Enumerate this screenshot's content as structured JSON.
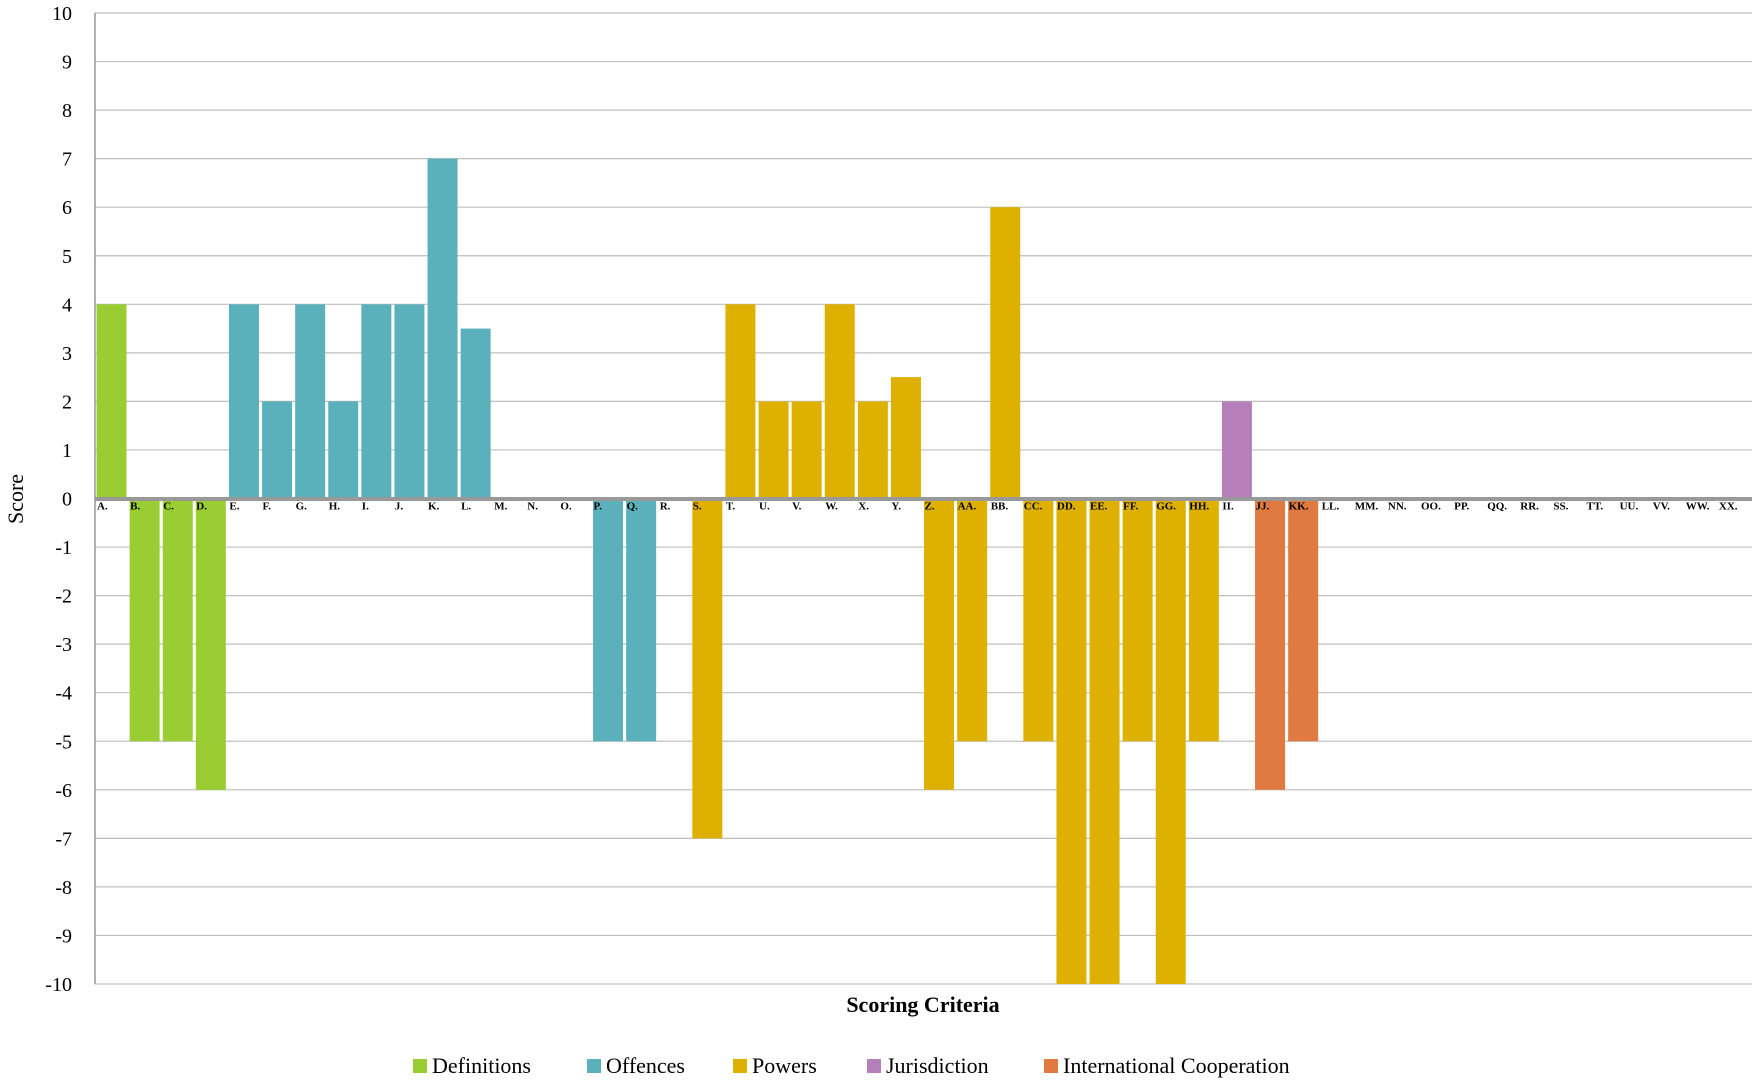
{
  "chart_data": {
    "type": "bar",
    "xlabel": "Scoring Criteria",
    "ylabel": "Score",
    "ylim": [
      -10,
      10
    ],
    "yticks": [
      10,
      9,
      8,
      7,
      6,
      5,
      4,
      3,
      2,
      1,
      0,
      -1,
      -2,
      -3,
      -4,
      -5,
      -6,
      -7,
      -8,
      -9,
      -10
    ],
    "grid": true,
    "legend_position": "bottom",
    "categories": [
      "A.",
      "B.",
      "C.",
      "D.",
      "E.",
      "F.",
      "G.",
      "H.",
      "I.",
      "J.",
      "K.",
      "L.",
      "M.",
      "N.",
      "O.",
      "P.",
      "Q.",
      "R.",
      "S.",
      "T.",
      "U.",
      "V.",
      "W.",
      "X.",
      "Y.",
      "Z.",
      "AA.",
      "BB.",
      "CC.",
      "DD.",
      "EE.",
      "FF.",
      "GG.",
      "HH.",
      "II.",
      "JJ.",
      "KK.",
      "LL.",
      "MM.",
      "NN.",
      "OO.",
      "PP.",
      "QQ.",
      "RR.",
      "SS.",
      "TT.",
      "UU.",
      "VV.",
      "WW.",
      "XX."
    ],
    "series": [
      {
        "name": "Definitions",
        "color": "#9acd32",
        "values": [
          4,
          -5,
          -5,
          -6,
          null,
          null,
          null,
          null,
          null,
          null,
          null,
          null,
          null,
          null,
          null,
          null,
          null,
          null,
          null,
          null,
          null,
          null,
          null,
          null,
          null,
          null,
          null,
          null,
          null,
          null,
          null,
          null,
          null,
          null,
          null,
          null,
          null,
          null,
          null,
          null,
          null,
          null,
          null,
          null,
          null,
          null,
          null,
          null,
          null,
          null
        ]
      },
      {
        "name": "Offences",
        "color": "#5ab1bb",
        "values": [
          null,
          null,
          null,
          null,
          4,
          2,
          4,
          2,
          4,
          4,
          7,
          3.5,
          0,
          0,
          0,
          -5,
          -5,
          null,
          null,
          null,
          null,
          null,
          null,
          null,
          null,
          null,
          null,
          null,
          null,
          null,
          null,
          null,
          null,
          null,
          null,
          null,
          null,
          null,
          null,
          null,
          null,
          null,
          null,
          null,
          null,
          null,
          null,
          null,
          null,
          null
        ]
      },
      {
        "name": "Powers",
        "color": "#deb100",
        "values": [
          null,
          null,
          null,
          null,
          null,
          null,
          null,
          null,
          null,
          null,
          null,
          null,
          null,
          null,
          null,
          null,
          null,
          0,
          -7,
          4,
          2,
          2,
          4,
          2,
          2.5,
          -6,
          -5,
          6,
          -5,
          -10,
          -10,
          -5,
          -10,
          -5,
          null,
          null,
          null,
          null,
          null,
          null,
          null,
          null,
          null,
          null,
          null,
          null,
          null,
          null,
          null,
          null
        ]
      },
      {
        "name": "Jurisdiction",
        "color": "#b67fb9",
        "values": [
          null,
          null,
          null,
          null,
          null,
          null,
          null,
          null,
          null,
          null,
          null,
          null,
          null,
          null,
          null,
          null,
          null,
          null,
          null,
          null,
          null,
          null,
          null,
          null,
          null,
          null,
          null,
          null,
          null,
          null,
          null,
          null,
          null,
          null,
          2,
          null,
          null,
          null,
          null,
          null,
          null,
          null,
          null,
          null,
          null,
          null,
          null,
          null,
          null,
          null
        ]
      },
      {
        "name": "International Cooperation",
        "color": "#e07a40",
        "values": [
          null,
          null,
          null,
          null,
          null,
          null,
          null,
          null,
          null,
          null,
          null,
          null,
          null,
          null,
          null,
          null,
          null,
          null,
          null,
          null,
          null,
          null,
          null,
          null,
          null,
          null,
          null,
          null,
          null,
          null,
          null,
          null,
          null,
          null,
          null,
          -6,
          -5,
          0,
          0,
          0,
          0,
          0,
          0,
          0,
          0,
          0,
          0,
          0,
          0,
          0
        ]
      }
    ]
  }
}
